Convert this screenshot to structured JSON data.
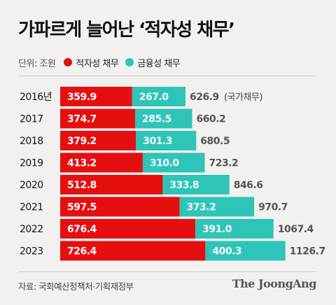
{
  "title": "가파르게 늘어난 ‘적자성 채무’",
  "unit": "단위: 조원",
  "legend": [
    {
      "label": "적자성 채무",
      "color": "#e60f0f"
    },
    {
      "label": "금융성 채무",
      "color": "#2ec4b8"
    }
  ],
  "source": "자료: 국회예산정책처·기획재정부",
  "brand": "The JoongAng",
  "chart_data": {
    "type": "bar",
    "orientation": "horizontal",
    "stacked": true,
    "categories": [
      "2016년",
      "2017",
      "2018",
      "2019",
      "2020",
      "2021",
      "2022",
      "2023"
    ],
    "series": [
      {
        "name": "적자성 채무",
        "color": "#e60f0f",
        "values": [
          359.9,
          374.7,
          379.2,
          413.2,
          512.8,
          597.5,
          676.4,
          726.4
        ],
        "labels": [
          "359.9",
          "374.7",
          "379.2",
          "413.2",
          "512.8",
          "597.5",
          "676.4",
          "726.4"
        ]
      },
      {
        "name": "금융성 채무",
        "color": "#2ec4b8",
        "values": [
          267.0,
          285.5,
          301.3,
          310.0,
          333.8,
          373.2,
          391.0,
          400.3
        ],
        "labels": [
          "267.0",
          "285.5",
          "301.3",
          "310.0",
          "333.8",
          "373.2",
          "391.0",
          "400.3"
        ]
      }
    ],
    "totals": [
      "626.9",
      "660.2",
      "680.5",
      "723.2",
      "846.6",
      "970.7",
      "1067.4",
      "1126.7"
    ],
    "first_total_note": "(국가채무)"
  }
}
